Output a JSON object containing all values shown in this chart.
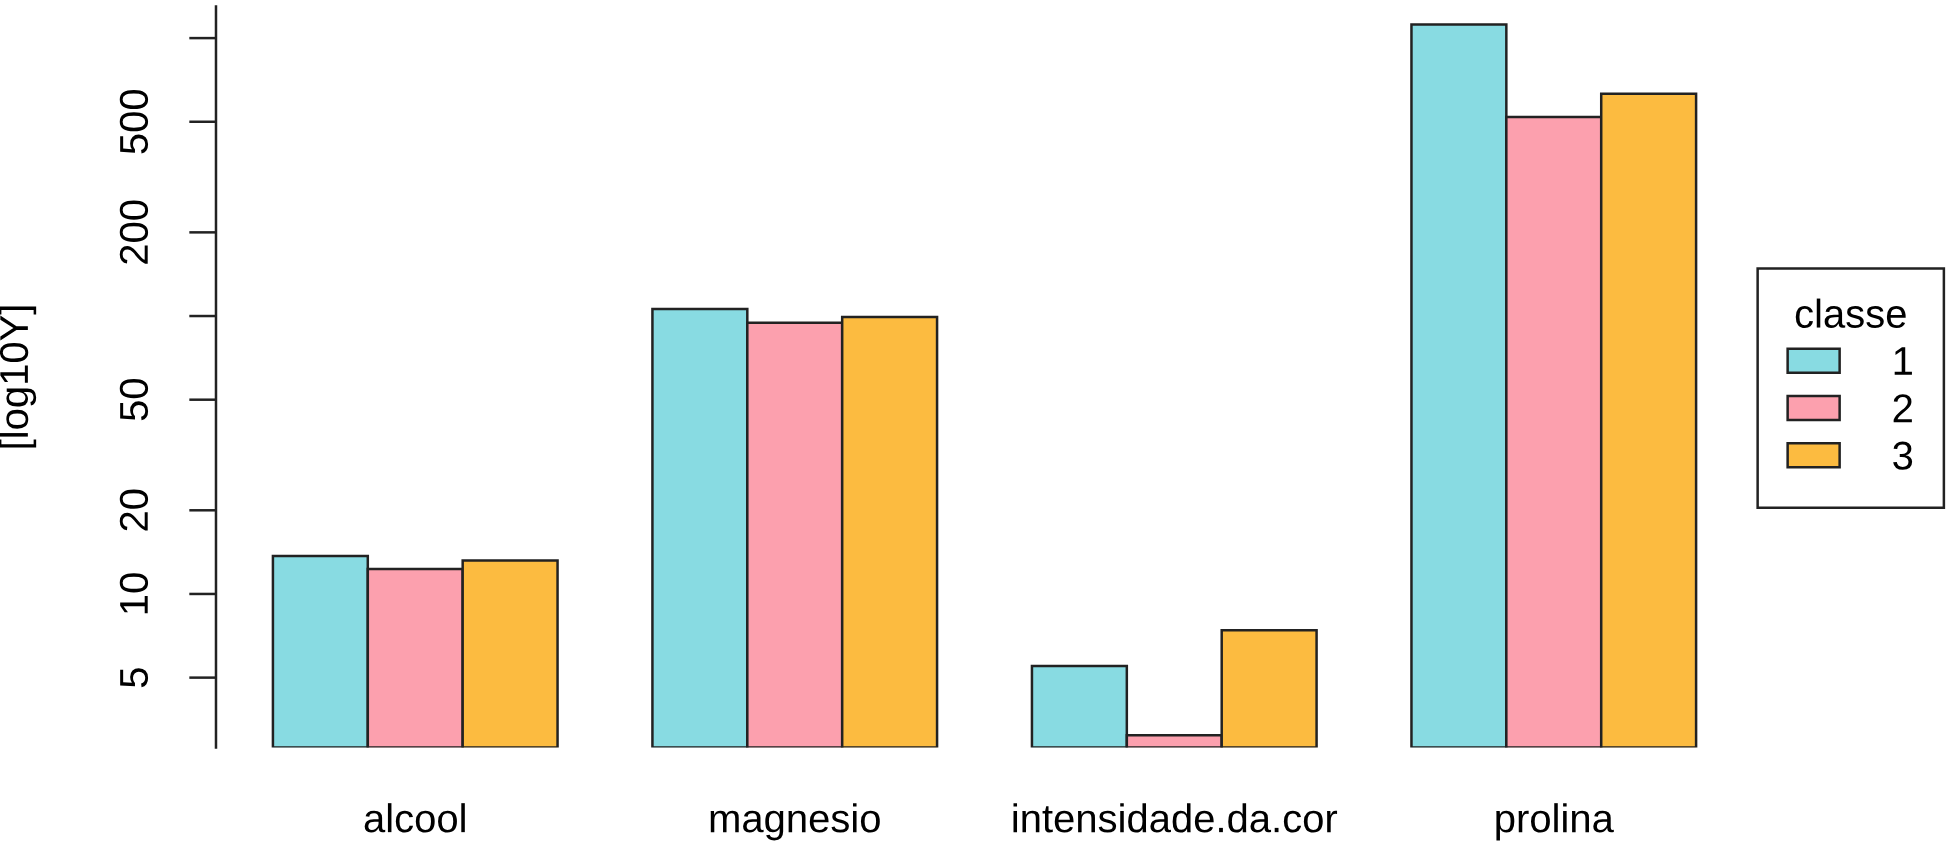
{
  "chart_data": {
    "type": "bar",
    "categories": [
      "alcool",
      "magnesio",
      "intensidade.da.cor",
      "prolina"
    ],
    "series": [
      {
        "name": "1",
        "color": "#88dbe2",
        "values": [
          13.7,
          106,
          5.5,
          1120
        ]
      },
      {
        "name": "2",
        "color": "#fca0ae",
        "values": [
          12.3,
          94.5,
          3.1,
          520
        ]
      },
      {
        "name": "3",
        "color": "#fcbb40",
        "values": [
          13.2,
          99.3,
          7.4,
          630
        ]
      }
    ],
    "ylabel": "[log10Y]",
    "legend_title": "classe",
    "legend": "right",
    "log": "y",
    "ylim": [
      2.8,
      1300
    ],
    "yticks": [
      5,
      10,
      20,
      50,
      {
        "value": 100,
        "label": null
      },
      200,
      500,
      {
        "value": 1000,
        "label": null
      }
    ]
  }
}
